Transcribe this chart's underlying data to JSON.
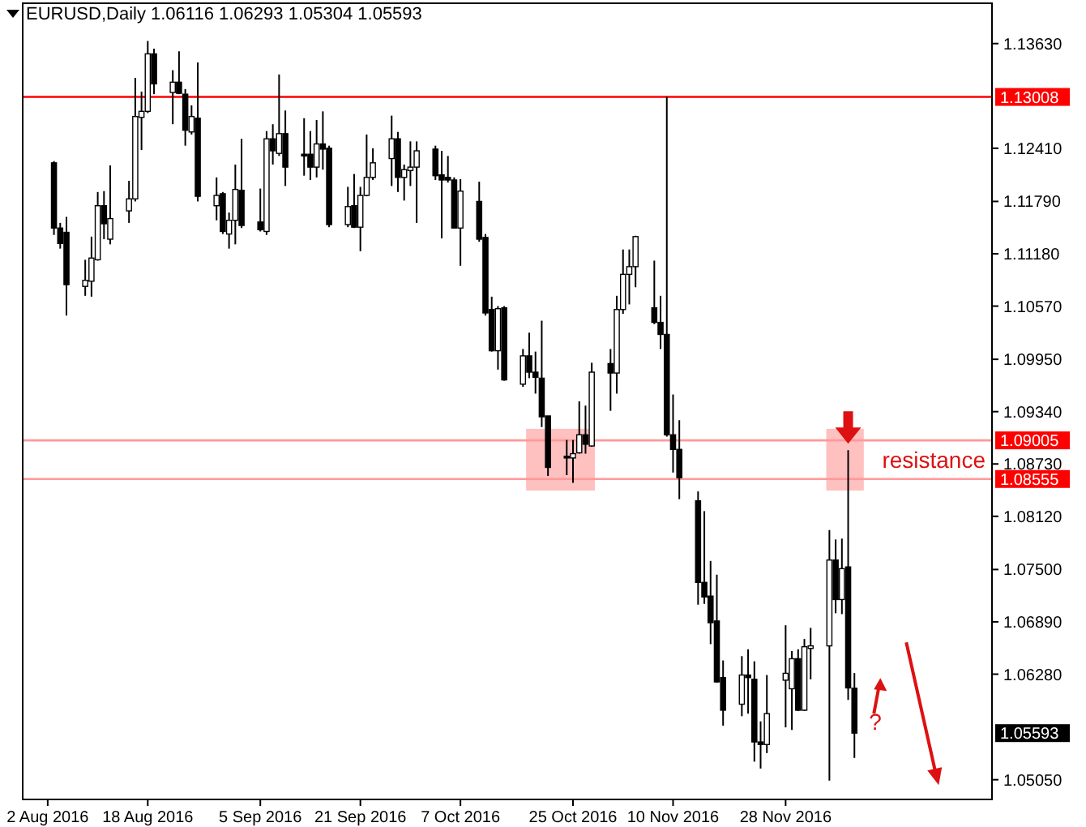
{
  "chart_data": {
    "type": "candlestick",
    "title": "EURUSD,Daily  1.06116 1.06293 1.05304 1.05593",
    "x": [
      "2016-08-03",
      "2016-08-04",
      "2016-08-05",
      "2016-08-08",
      "2016-08-09",
      "2016-08-10",
      "2016-08-11",
      "2016-08-12",
      "2016-08-15",
      "2016-08-16",
      "2016-08-17",
      "2016-08-18",
      "2016-08-19",
      "2016-08-22",
      "2016-08-23",
      "2016-08-24",
      "2016-08-25",
      "2016-08-26",
      "2016-08-29",
      "2016-08-30",
      "2016-08-31",
      "2016-09-01",
      "2016-09-02",
      "2016-09-05",
      "2016-09-06",
      "2016-09-07",
      "2016-09-08",
      "2016-09-09",
      "2016-09-12",
      "2016-09-13",
      "2016-09-14",
      "2016-09-15",
      "2016-09-16",
      "2016-09-19",
      "2016-09-20",
      "2016-09-21",
      "2016-09-22",
      "2016-09-23",
      "2016-09-26",
      "2016-09-27",
      "2016-09-28",
      "2016-09-29",
      "2016-09-30",
      "2016-10-03",
      "2016-10-04",
      "2016-10-05",
      "2016-10-06",
      "2016-10-07",
      "2016-10-10",
      "2016-10-11",
      "2016-10-12",
      "2016-10-13",
      "2016-10-14",
      "2016-10-17",
      "2016-10-18",
      "2016-10-19",
      "2016-10-20",
      "2016-10-21",
      "2016-10-24",
      "2016-10-25",
      "2016-10-26",
      "2016-10-27",
      "2016-10-28",
      "2016-10-31",
      "2016-11-01",
      "2016-11-02",
      "2016-11-03",
      "2016-11-04",
      "2016-11-07",
      "2016-11-08",
      "2016-11-09",
      "2016-11-10",
      "2016-11-11",
      "2016-11-14",
      "2016-11-15",
      "2016-11-16",
      "2016-11-17",
      "2016-11-18",
      "2016-11-21",
      "2016-11-22",
      "2016-11-23",
      "2016-11-24",
      "2016-11-25",
      "2016-11-28",
      "2016-11-29",
      "2016-11-30",
      "2016-12-01",
      "2016-12-02",
      "2016-12-05",
      "2016-12-06",
      "2016-12-07",
      "2016-12-08",
      "2016-12-09"
    ],
    "ohlc": [
      [
        1.1224,
        1.1226,
        1.114,
        1.1148
      ],
      [
        1.1148,
        1.1154,
        1.1124,
        1.113
      ],
      [
        1.1143,
        1.1161,
        1.1046,
        1.1082
      ],
      [
        1.108,
        1.1111,
        1.1069,
        1.1087
      ],
      [
        1.1086,
        1.1138,
        1.1068,
        1.1113
      ],
      [
        1.1111,
        1.119,
        1.111,
        1.1174
      ],
      [
        1.1174,
        1.1191,
        1.1135,
        1.1153
      ],
      [
        1.1135,
        1.1221,
        1.1129,
        1.1159
      ],
      [
        1.1168,
        1.1203,
        1.1154,
        1.1182
      ],
      [
        1.1182,
        1.1323,
        1.1179,
        1.1278
      ],
      [
        1.1277,
        1.1307,
        1.1239,
        1.1284
      ],
      [
        1.1284,
        1.1366,
        1.1282,
        1.1351
      ],
      [
        1.1351,
        1.1357,
        1.1304,
        1.1316
      ],
      [
        1.1306,
        1.1332,
        1.1269,
        1.1318
      ],
      [
        1.1318,
        1.1354,
        1.1304,
        1.1305
      ],
      [
        1.1304,
        1.131,
        1.1244,
        1.1262
      ],
      [
        1.126,
        1.1291,
        1.1257,
        1.1278
      ],
      [
        1.1276,
        1.1341,
        1.1179,
        1.1185
      ],
      [
        1.1174,
        1.1207,
        1.1157,
        1.1186
      ],
      [
        1.1188,
        1.119,
        1.1141,
        1.1144
      ],
      [
        1.1141,
        1.1166,
        1.1124,
        1.1157
      ],
      [
        1.1157,
        1.1222,
        1.1129,
        1.1193
      ],
      [
        1.1192,
        1.1252,
        1.1148,
        1.1151
      ],
      [
        1.1155,
        1.1194,
        1.1144,
        1.1146
      ],
      [
        1.1144,
        1.1261,
        1.114,
        1.1252
      ],
      [
        1.1252,
        1.1269,
        1.1222,
        1.1238
      ],
      [
        1.1235,
        1.1327,
        1.1232,
        1.1258
      ],
      [
        1.1258,
        1.1285,
        1.1197,
        1.1219
      ],
      [
        1.1234,
        1.1276,
        1.1209,
        1.1232
      ],
      [
        1.1234,
        1.1261,
        1.1204,
        1.1219
      ],
      [
        1.1219,
        1.1274,
        1.1207,
        1.1246
      ],
      [
        1.1246,
        1.1284,
        1.1216,
        1.124
      ],
      [
        1.1241,
        1.1244,
        1.1149,
        1.1152
      ],
      [
        1.1152,
        1.1196,
        1.1149,
        1.1173
      ],
      [
        1.1174,
        1.1211,
        1.1148,
        1.1149
      ],
      [
        1.1149,
        1.1196,
        1.1121,
        1.1186
      ],
      [
        1.1186,
        1.1257,
        1.1185,
        1.1207
      ],
      [
        1.1207,
        1.1241,
        1.1204,
        1.1224
      ],
      [
        1.1229,
        1.1279,
        1.1197,
        1.1252
      ],
      [
        1.1252,
        1.126,
        1.119,
        1.1207
      ],
      [
        1.1207,
        1.1222,
        1.118,
        1.1216
      ],
      [
        1.1215,
        1.1249,
        1.1197,
        1.1219
      ],
      [
        1.1219,
        1.1249,
        1.1154,
        1.1238
      ],
      [
        1.124,
        1.1244,
        1.1204,
        1.1209
      ],
      [
        1.121,
        1.1238,
        1.1136,
        1.1204
      ],
      [
        1.1207,
        1.1232,
        1.1201,
        1.1204
      ],
      [
        1.1204,
        1.1207,
        1.1148,
        1.1148
      ],
      [
        1.1148,
        1.1205,
        1.1104,
        1.1191
      ],
      [
        1.1179,
        1.1202,
        1.1132,
        1.1135
      ],
      [
        1.1137,
        1.1141,
        1.1046,
        1.1049
      ],
      [
        1.1053,
        1.1068,
        1.1004,
        1.1005
      ],
      [
        1.1005,
        1.1057,
        1.0983,
        1.1054
      ],
      [
        1.1055,
        1.1057,
        1.097,
        1.0971
      ],
      [
        1.0966,
        1.1007,
        1.0963,
        1.0999
      ],
      [
        1.0999,
        1.1026,
        1.0973,
        1.098
      ],
      [
        1.098,
        1.1004,
        1.0955,
        1.0974
      ],
      [
        1.0973,
        1.104,
        1.0916,
        1.0928
      ],
      [
        1.0929,
        1.0929,
        1.0859,
        1.0869
      ],
      [
        1.0882,
        1.0901,
        1.086,
        1.088
      ],
      [
        1.088,
        1.0901,
        1.0851,
        1.0885
      ],
      [
        1.0886,
        1.0946,
        1.0885,
        1.0907
      ],
      [
        1.0907,
        1.0941,
        1.0885,
        1.0896
      ],
      [
        1.0894,
        1.0991,
        1.0893,
        1.098
      ],
      [
        1.099,
        1.1007,
        1.0935,
        1.0979
      ],
      [
        1.0979,
        1.1069,
        1.0955,
        1.1053
      ],
      [
        1.1053,
        1.1123,
        1.1048,
        1.1094
      ],
      [
        1.1094,
        1.1123,
        1.1059,
        1.1103
      ],
      [
        1.1103,
        1.1139,
        1.1079,
        1.1138
      ],
      [
        1.1055,
        1.111,
        1.1036,
        1.1038
      ],
      [
        1.1038,
        1.1069,
        1.1007,
        1.1024
      ],
      [
        1.1024,
        1.1301,
        1.0905,
        1.0907
      ],
      [
        1.0907,
        1.0954,
        1.0863,
        1.089
      ],
      [
        1.089,
        1.0924,
        1.0832,
        1.0857
      ],
      [
        1.083,
        1.0841,
        1.0709,
        1.0735
      ],
      [
        1.0735,
        1.0818,
        1.071,
        1.0718
      ],
      [
        1.0719,
        1.076,
        1.0663,
        1.0688
      ],
      [
        1.069,
        1.0744,
        1.0618,
        1.0619
      ],
      [
        1.0624,
        1.0644,
        1.0568,
        1.0586
      ],
      [
        1.0593,
        1.0649,
        1.0579,
        1.0627
      ],
      [
        1.0627,
        1.0657,
        1.0582,
        1.0624
      ],
      [
        1.0622,
        1.0643,
        1.0526,
        1.0549
      ],
      [
        1.0549,
        1.0573,
        1.0518,
        1.0546
      ],
      [
        1.0546,
        1.0627,
        1.0536,
        1.0582
      ],
      [
        1.0621,
        1.0685,
        1.0566,
        1.0629
      ],
      [
        1.0611,
        1.0655,
        1.0563,
        1.0646
      ],
      [
        1.0646,
        1.0657,
        1.0585,
        1.0586
      ],
      [
        1.0586,
        1.0669,
        1.0585,
        1.066
      ],
      [
        1.0658,
        1.0682,
        1.0622,
        1.0661
      ],
      [
        1.0661,
        1.0796,
        1.0504,
        1.0761
      ],
      [
        1.0761,
        1.0785,
        1.0699,
        1.0715
      ],
      [
        1.0715,
        1.0786,
        1.0698,
        1.0751
      ],
      [
        1.0753,
        1.0889,
        1.0598,
        1.0612
      ],
      [
        1.06116,
        1.06293,
        1.05304,
        1.05593
      ]
    ],
    "xlim": [
      "2016-07-29",
      "2016-12-31"
    ],
    "xticks": [
      {
        "value": "2016-08-02",
        "label": "2 Aug 2016"
      },
      {
        "value": "2016-08-18",
        "label": "18 Aug 2016"
      },
      {
        "value": "2016-09-05",
        "label": "5 Sep 2016"
      },
      {
        "value": "2016-09-21",
        "label": "21 Sep 2016"
      },
      {
        "value": "2016-10-07",
        "label": "7 Oct 2016"
      },
      {
        "value": "2016-10-25",
        "label": "25 Oct 2016"
      },
      {
        "value": "2016-11-10",
        "label": "10 Nov 2016"
      },
      {
        "value": "2016-11-28",
        "label": "28 Nov 2016"
      }
    ],
    "ylim": [
      1.0482,
      1.141
    ],
    "yticks": [
      {
        "value": 1.1363,
        "label": "1.13630"
      },
      {
        "value": 1.1241,
        "label": "1.12410"
      },
      {
        "value": 1.1179,
        "label": "1.11790"
      },
      {
        "value": 1.1118,
        "label": "1.11180"
      },
      {
        "value": 1.1057,
        "label": "1.10570"
      },
      {
        "value": 1.0995,
        "label": "1.09950"
      },
      {
        "value": 1.0934,
        "label": "1.09340"
      },
      {
        "value": 1.0873,
        "label": "1.08730"
      },
      {
        "value": 1.0812,
        "label": "1.08120"
      },
      {
        "value": 1.075,
        "label": "1.07500"
      },
      {
        "value": 1.0689,
        "label": "1.06890"
      },
      {
        "value": 1.0628,
        "label": "1.06280"
      },
      {
        "value": 1.0505,
        "label": "1.05050"
      }
    ],
    "ref_lines": [
      {
        "axis": "y",
        "value": 1.13008,
        "label": "1.13008",
        "color": "#ff0000"
      },
      {
        "axis": "y",
        "value": 1.09005,
        "label": "1.09005",
        "color": "#ff9999"
      },
      {
        "axis": "y",
        "value": 1.08555,
        "label": "1.08555",
        "color": "#ff9999"
      }
    ],
    "annotations": [
      "resistance",
      "?",
      "1.05593"
    ]
  }
}
